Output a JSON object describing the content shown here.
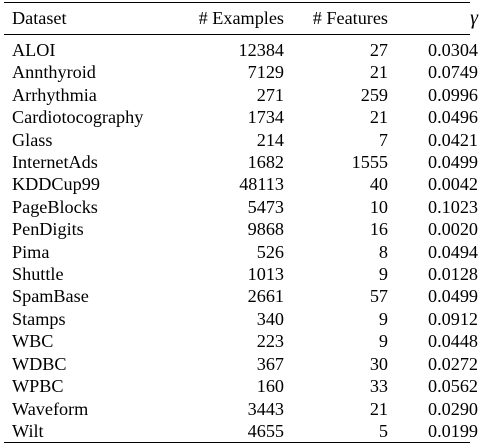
{
  "table": {
    "headers": {
      "dataset": "Dataset",
      "examples": "# Examples",
      "features": "# Features",
      "gamma": "γ"
    },
    "rows": [
      {
        "dataset": "ALOI",
        "examples": "12384",
        "features": "27",
        "gamma": "0.0304"
      },
      {
        "dataset": "Annthyroid",
        "examples": "7129",
        "features": "21",
        "gamma": "0.0749"
      },
      {
        "dataset": "Arrhythmia",
        "examples": "271",
        "features": "259",
        "gamma": "0.0996"
      },
      {
        "dataset": "Cardiotocography",
        "examples": "1734",
        "features": "21",
        "gamma": "0.0496"
      },
      {
        "dataset": "Glass",
        "examples": "214",
        "features": "7",
        "gamma": "0.0421"
      },
      {
        "dataset": "InternetAds",
        "examples": "1682",
        "features": "1555",
        "gamma": "0.0499"
      },
      {
        "dataset": "KDDCup99",
        "examples": "48113",
        "features": "40",
        "gamma": "0.0042"
      },
      {
        "dataset": "PageBlocks",
        "examples": "5473",
        "features": "10",
        "gamma": "0.1023"
      },
      {
        "dataset": "PenDigits",
        "examples": "9868",
        "features": "16",
        "gamma": "0.0020"
      },
      {
        "dataset": "Pima",
        "examples": "526",
        "features": "8",
        "gamma": "0.0494"
      },
      {
        "dataset": "Shuttle",
        "examples": "1013",
        "features": "9",
        "gamma": "0.0128"
      },
      {
        "dataset": "SpamBase",
        "examples": "2661",
        "features": "57",
        "gamma": "0.0499"
      },
      {
        "dataset": "Stamps",
        "examples": "340",
        "features": "9",
        "gamma": "0.0912"
      },
      {
        "dataset": "WBC",
        "examples": "223",
        "features": "9",
        "gamma": "0.0448"
      },
      {
        "dataset": "WDBC",
        "examples": "367",
        "features": "30",
        "gamma": "0.0272"
      },
      {
        "dataset": "WPBC",
        "examples": "160",
        "features": "33",
        "gamma": "0.0562"
      },
      {
        "dataset": "Waveform",
        "examples": "3443",
        "features": "21",
        "gamma": "0.0290"
      },
      {
        "dataset": "Wilt",
        "examples": "4655",
        "features": "5",
        "gamma": "0.0199"
      }
    ]
  }
}
